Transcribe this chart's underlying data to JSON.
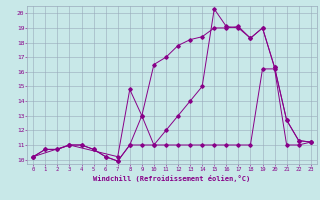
{
  "xlabel": "Windchill (Refroidissement éolien,°C)",
  "bg_color": "#c8e8e8",
  "grid_color": "#99aabb",
  "line_color": "#880088",
  "xlim": [
    -0.5,
    23.5
  ],
  "ylim": [
    9.7,
    20.5
  ],
  "xticks": [
    0,
    1,
    2,
    3,
    4,
    5,
    6,
    7,
    8,
    9,
    10,
    11,
    12,
    13,
    14,
    15,
    16,
    17,
    18,
    19,
    20,
    21,
    22,
    23
  ],
  "yticks": [
    10,
    11,
    12,
    13,
    14,
    15,
    16,
    17,
    18,
    19,
    20
  ],
  "line1_x": [
    0,
    1,
    2,
    3,
    4,
    5,
    6,
    7,
    8,
    9,
    10,
    11,
    12,
    13,
    14,
    15,
    16,
    17,
    18,
    19,
    20,
    21,
    22,
    23
  ],
  "line1_y": [
    10.2,
    10.7,
    10.7,
    11.0,
    11.0,
    10.7,
    10.2,
    9.9,
    11.0,
    13.0,
    16.5,
    17.0,
    17.8,
    18.2,
    18.4,
    19.0,
    19.0,
    19.1,
    18.3,
    19.0,
    16.3,
    12.7,
    11.3,
    11.2
  ],
  "line2_x": [
    0,
    3,
    7,
    8,
    9,
    10,
    11,
    12,
    13,
    14,
    15,
    16,
    17,
    18,
    19,
    20,
    21,
    22,
    23
  ],
  "line2_y": [
    10.2,
    11.0,
    10.2,
    14.8,
    13.0,
    11.0,
    12.0,
    13.0,
    14.0,
    15.0,
    20.3,
    19.1,
    19.0,
    18.3,
    19.0,
    16.3,
    12.7,
    11.3,
    11.2
  ],
  "line3_x": [
    0,
    1,
    2,
    3,
    4,
    5,
    6,
    7,
    8,
    9,
    10,
    11,
    12,
    13,
    14,
    15,
    16,
    17,
    18,
    19,
    20,
    21,
    22,
    23
  ],
  "line3_y": [
    10.2,
    10.7,
    10.7,
    11.0,
    11.0,
    10.7,
    10.2,
    9.9,
    11.0,
    11.0,
    11.0,
    11.0,
    11.0,
    11.0,
    11.0,
    11.0,
    11.0,
    11.0,
    11.0,
    16.2,
    16.2,
    11.0,
    11.0,
    11.2
  ]
}
